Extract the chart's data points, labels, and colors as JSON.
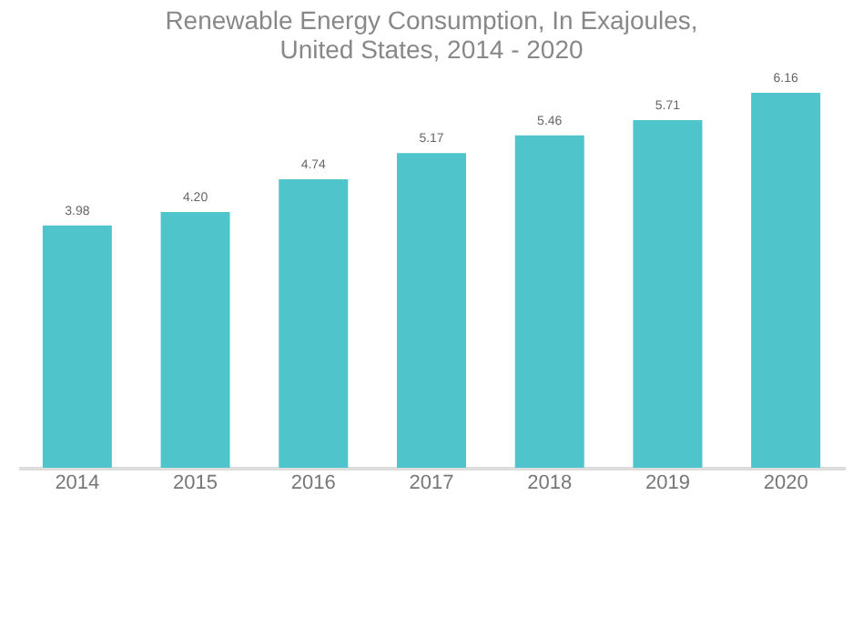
{
  "chart_data": {
    "type": "bar",
    "title": [
      "Renewable Energy Consumption, In Exajoules,",
      "United States, 2014 - 2020"
    ],
    "categories": [
      "2014",
      "2015",
      "2016",
      "2017",
      "2018",
      "2019",
      "2020"
    ],
    "values": [
      3.98,
      4.2,
      4.74,
      5.17,
      5.46,
      5.71,
      6.16
    ],
    "value_labels": [
      "3.98",
      "4.20",
      "4.74",
      "5.17",
      "5.46",
      "5.71",
      "6.16"
    ],
    "color": "#4fc4cb",
    "tick_labels": "x",
    "grid": false
  }
}
